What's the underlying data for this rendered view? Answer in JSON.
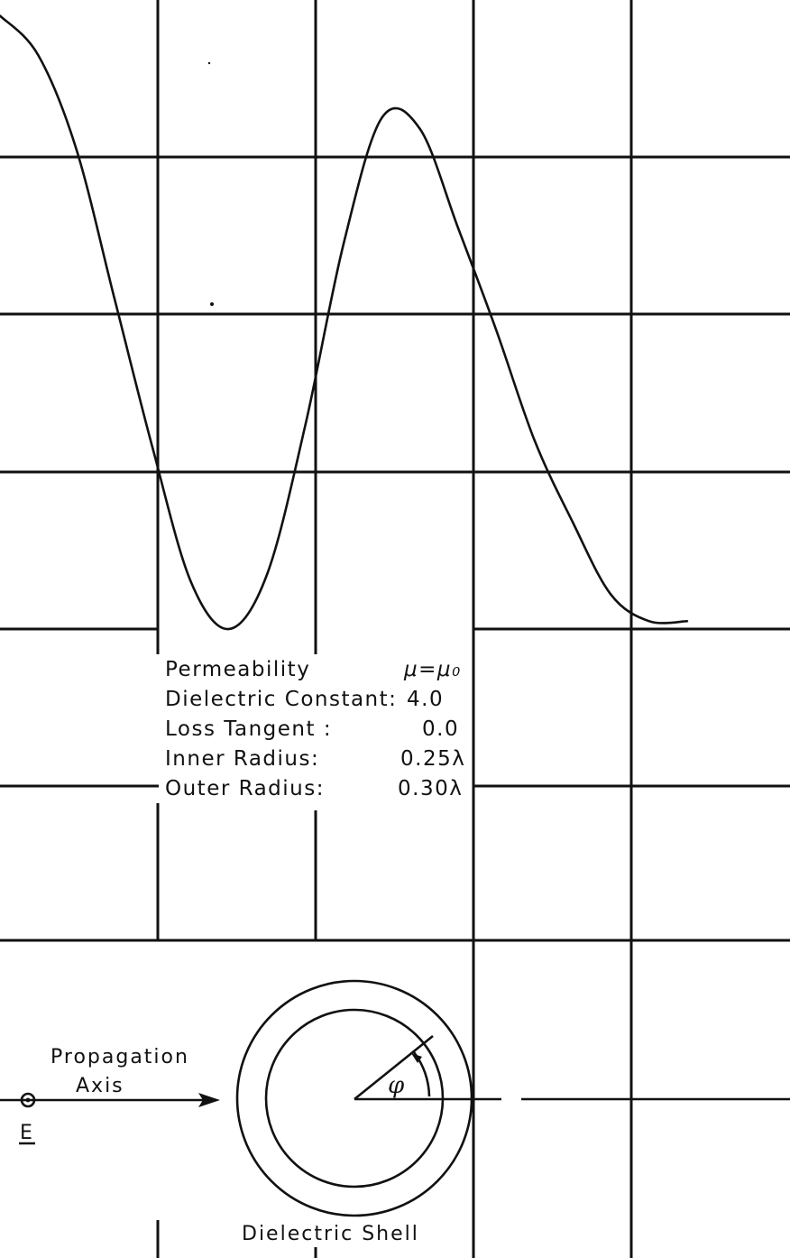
{
  "chart_data": {
    "type": "line",
    "x": [
      0,
      10,
      20,
      30,
      40,
      50,
      60,
      70,
      80,
      90,
      100,
      110,
      120,
      130,
      140,
      150,
      160,
      170,
      180
    ],
    "series": [
      {
        "values": [
          3.9,
          3.65,
          3.05,
          2.1,
          1.15,
          0.3,
          0.0,
          0.35,
          1.3,
          2.45,
          3.25,
          3.18,
          2.55,
          1.9,
          1.2,
          0.68,
          0.22,
          0.05,
          0.05
        ]
      }
    ],
    "xlim": [
      0,
      180
    ],
    "ylim": [
      0,
      4
    ],
    "grid": true
  },
  "parameters": {
    "rows": [
      {
        "label": "Permeability",
        "value": "μ=μ₀"
      },
      {
        "label": "Dielectric Constant:",
        "value": "4.0"
      },
      {
        "label": "Loss Tangent :",
        "value": "0.0"
      },
      {
        "label": "Inner Radius:",
        "value": "0.25λ"
      },
      {
        "label": "Outer Radius:",
        "value": "0.30λ"
      }
    ]
  },
  "diagram": {
    "propagation_label_line1": "Propagation",
    "propagation_label_line2": "Axis",
    "field_label": "E",
    "angle_label": "φ",
    "shell_label": "Dielectric Shell"
  }
}
